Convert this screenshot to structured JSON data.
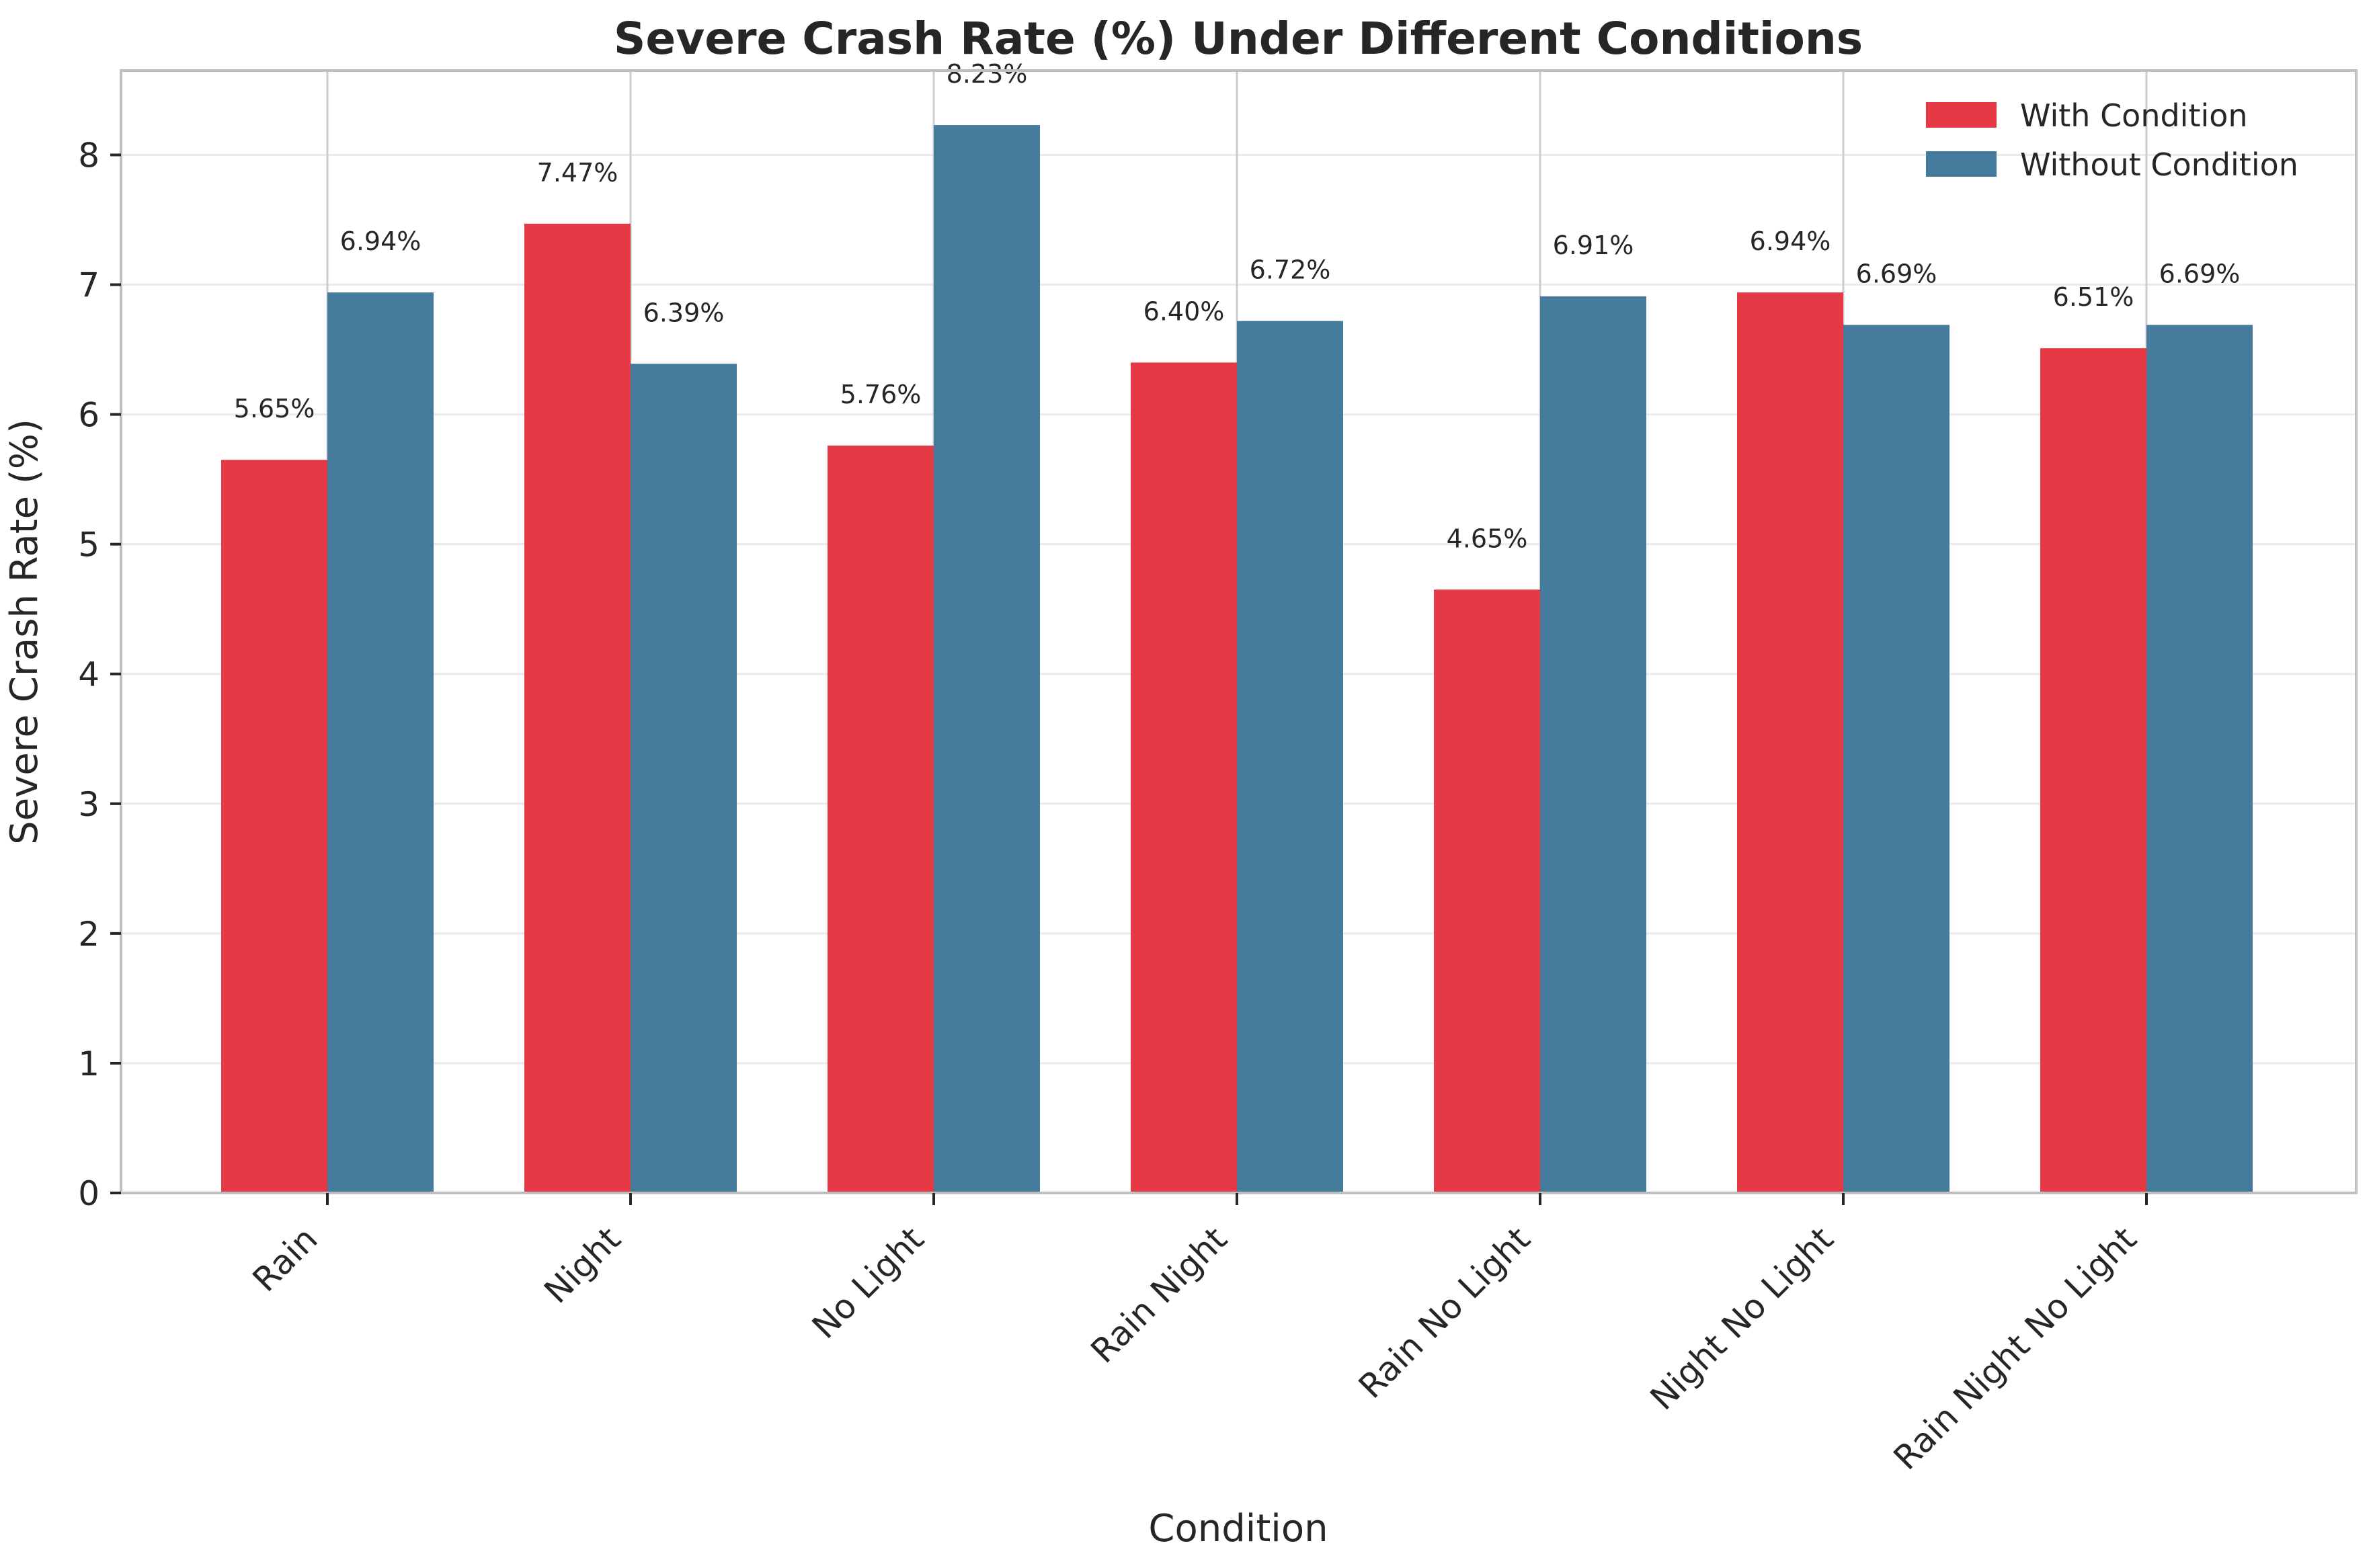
{
  "chart_data": {
    "type": "bar",
    "title": "Severe Crash Rate (%) Under Different Conditions",
    "xlabel": "Condition",
    "ylabel": "Severe Crash Rate (%)",
    "ylim": [
      0,
      8.65
    ],
    "yticks": [
      0,
      1,
      2,
      3,
      4,
      5,
      6,
      7,
      8
    ],
    "grid": true,
    "legend_position": "top-right",
    "categories": [
      "Rain",
      "Night",
      "No Light",
      "Rain Night",
      "Rain No Light",
      "Night No Light",
      "Rain Night No Light"
    ],
    "series": [
      {
        "name": "With Condition",
        "color": "#e63946",
        "values": [
          5.65,
          7.47,
          5.76,
          6.4,
          4.65,
          6.94,
          6.51
        ],
        "labels": [
          "5.65%",
          "7.47%",
          "5.76%",
          "6.40%",
          "4.65%",
          "6.94%",
          "6.51%"
        ]
      },
      {
        "name": "Without Condition",
        "color": "#457b9d",
        "values": [
          6.94,
          6.39,
          8.23,
          6.72,
          6.91,
          6.69,
          6.69
        ],
        "labels": [
          "6.94%",
          "6.39%",
          "8.23%",
          "6.72%",
          "6.91%",
          "6.69%",
          "6.69%"
        ]
      }
    ]
  }
}
